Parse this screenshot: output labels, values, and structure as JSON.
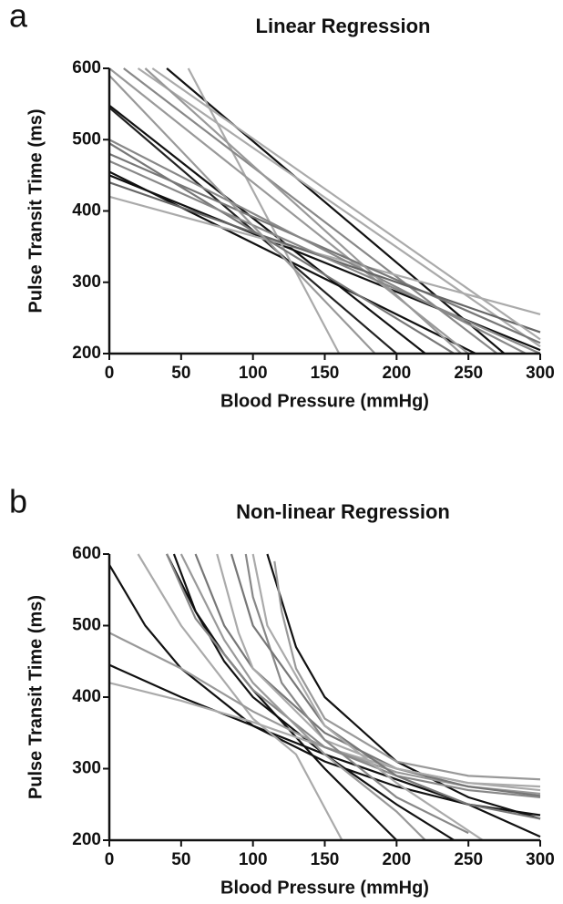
{
  "chart_data": [
    {
      "type": "line",
      "panel_label": "a",
      "title": "Linear Regression",
      "x_label": "Blood Pressure (mmHg)",
      "y_label": "Pulse Transit Time (ms)",
      "xlim": [
        0,
        300
      ],
      "ylim": [
        200,
        600
      ],
      "xticks": [
        0,
        50,
        100,
        150,
        200,
        250,
        300
      ],
      "yticks": [
        200,
        300,
        400,
        500,
        600
      ],
      "series": [
        {
          "color": "#111111",
          "x": [
            40,
            275
          ],
          "values": [
            600,
            200
          ]
        },
        {
          "color": "#111111",
          "x": [
            0,
            220
          ],
          "values": [
            548,
            200
          ]
        },
        {
          "color": "#111111",
          "x": [
            0,
            255
          ],
          "values": [
            455,
            200
          ]
        },
        {
          "color": "#222222",
          "x": [
            0,
            200
          ],
          "values": [
            545,
            200
          ]
        },
        {
          "color": "#111111",
          "x": [
            0,
            300
          ],
          "values": [
            450,
            205
          ]
        },
        {
          "color": "#aaaaaa",
          "x": [
            55,
            160
          ],
          "values": [
            600,
            200
          ]
        },
        {
          "color": "#999999",
          "x": [
            0,
            250
          ],
          "values": [
            600,
            200
          ]
        },
        {
          "color": "#888888",
          "x": [
            10,
            270
          ],
          "values": [
            600,
            200
          ]
        },
        {
          "color": "#aaaaaa",
          "x": [
            20,
            300
          ],
          "values": [
            600,
            210
          ]
        },
        {
          "color": "#aaaaaa",
          "x": [
            0,
            300
          ],
          "values": [
            420,
            255
          ]
        },
        {
          "color": "#777777",
          "x": [
            0,
            300
          ],
          "values": [
            480,
            215
          ]
        },
        {
          "color": "#888888",
          "x": [
            0,
            290
          ],
          "values": [
            500,
            200
          ]
        },
        {
          "color": "#999999",
          "x": [
            25,
            245
          ],
          "values": [
            600,
            200
          ]
        },
        {
          "color": "#666666",
          "x": [
            0,
            300
          ],
          "values": [
            440,
            230
          ]
        },
        {
          "color": "#777777",
          "x": [
            0,
            240
          ],
          "values": [
            495,
            200
          ]
        },
        {
          "color": "#aaaaaa",
          "x": [
            30,
            300
          ],
          "values": [
            600,
            220
          ]
        },
        {
          "color": "#888888",
          "x": [
            0,
            300
          ],
          "values": [
            470,
            200
          ]
        },
        {
          "color": "#999999",
          "x": [
            0,
            185
          ],
          "values": [
            590,
            200
          ]
        }
      ]
    },
    {
      "type": "line",
      "panel_label": "b",
      "title": "Non-linear Regression",
      "x_label": "Blood Pressure (mmHg)",
      "y_label": "Pulse Transit Time (ms)",
      "xlim": [
        0,
        300
      ],
      "ylim": [
        200,
        600
      ],
      "xticks": [
        0,
        50,
        100,
        150,
        200,
        250,
        300
      ],
      "yticks": [
        200,
        300,
        400,
        500,
        600
      ],
      "series": [
        {
          "color": "#111111",
          "x": [
            0,
            25,
            50,
            100,
            150,
            200,
            250,
            300
          ],
          "values": [
            585,
            500,
            440,
            360,
            310,
            275,
            250,
            235
          ]
        },
        {
          "color": "#111111",
          "x": [
            45,
            60,
            80,
            100,
            150,
            200,
            240
          ],
          "values": [
            600,
            520,
            450,
            400,
            320,
            250,
            200
          ]
        },
        {
          "color": "#111111",
          "x": [
            110,
            130,
            150,
            200,
            250,
            300
          ],
          "values": [
            600,
            470,
            400,
            310,
            260,
            230
          ]
        },
        {
          "color": "#111111",
          "x": [
            0,
            50,
            100,
            150,
            200,
            250,
            300
          ],
          "values": [
            445,
            400,
            360,
            320,
            285,
            250,
            205
          ]
        },
        {
          "color": "#111111",
          "x": [
            40,
            60,
            80,
            100,
            150,
            200
          ],
          "values": [
            600,
            520,
            460,
            410,
            300,
            200
          ]
        },
        {
          "color": "#aaaaaa",
          "x": [
            20,
            50,
            100,
            130,
            162
          ],
          "values": [
            600,
            500,
            370,
            320,
            200
          ]
        },
        {
          "color": "#aaaaaa",
          "x": [
            0,
            50,
            100,
            150,
            200,
            250,
            300
          ],
          "values": [
            420,
            395,
            365,
            330,
            300,
            280,
            270
          ]
        },
        {
          "color": "#999999",
          "x": [
            0,
            50,
            100,
            150,
            200,
            250,
            300
          ],
          "values": [
            490,
            440,
            380,
            330,
            295,
            275,
            265
          ]
        },
        {
          "color": "#888888",
          "x": [
            40,
            60,
            100,
            150,
            200,
            250,
            300
          ],
          "values": [
            600,
            510,
            410,
            330,
            290,
            270,
            260
          ]
        },
        {
          "color": "#777777",
          "x": [
            60,
            80,
            100,
            150,
            200,
            250,
            300
          ],
          "values": [
            600,
            500,
            440,
            350,
            300,
            275,
            262
          ]
        },
        {
          "color": "#aaaaaa",
          "x": [
            75,
            90,
            100,
            150,
            200,
            250,
            300
          ],
          "values": [
            600,
            490,
            440,
            340,
            300,
            280,
            275
          ]
        },
        {
          "color": "#999999",
          "x": [
            115,
            120,
            130,
            150,
            200,
            250,
            300
          ],
          "values": [
            590,
            520,
            440,
            370,
            310,
            290,
            285
          ]
        },
        {
          "color": "#888888",
          "x": [
            95,
            100,
            120,
            150,
            200,
            250
          ],
          "values": [
            600,
            540,
            420,
            340,
            260,
            210
          ]
        },
        {
          "color": "#999999",
          "x": [
            50,
            80,
            100,
            150,
            200,
            220
          ],
          "values": [
            600,
            480,
            420,
            320,
            240,
            200
          ]
        },
        {
          "color": "#777777",
          "x": [
            85,
            100,
            150,
            200,
            250,
            300
          ],
          "values": [
            600,
            500,
            360,
            290,
            250,
            230
          ]
        },
        {
          "color": "#aaaaaa",
          "x": [
            100,
            110,
            150,
            200,
            260
          ],
          "values": [
            600,
            500,
            360,
            280,
            200
          ]
        }
      ]
    }
  ]
}
